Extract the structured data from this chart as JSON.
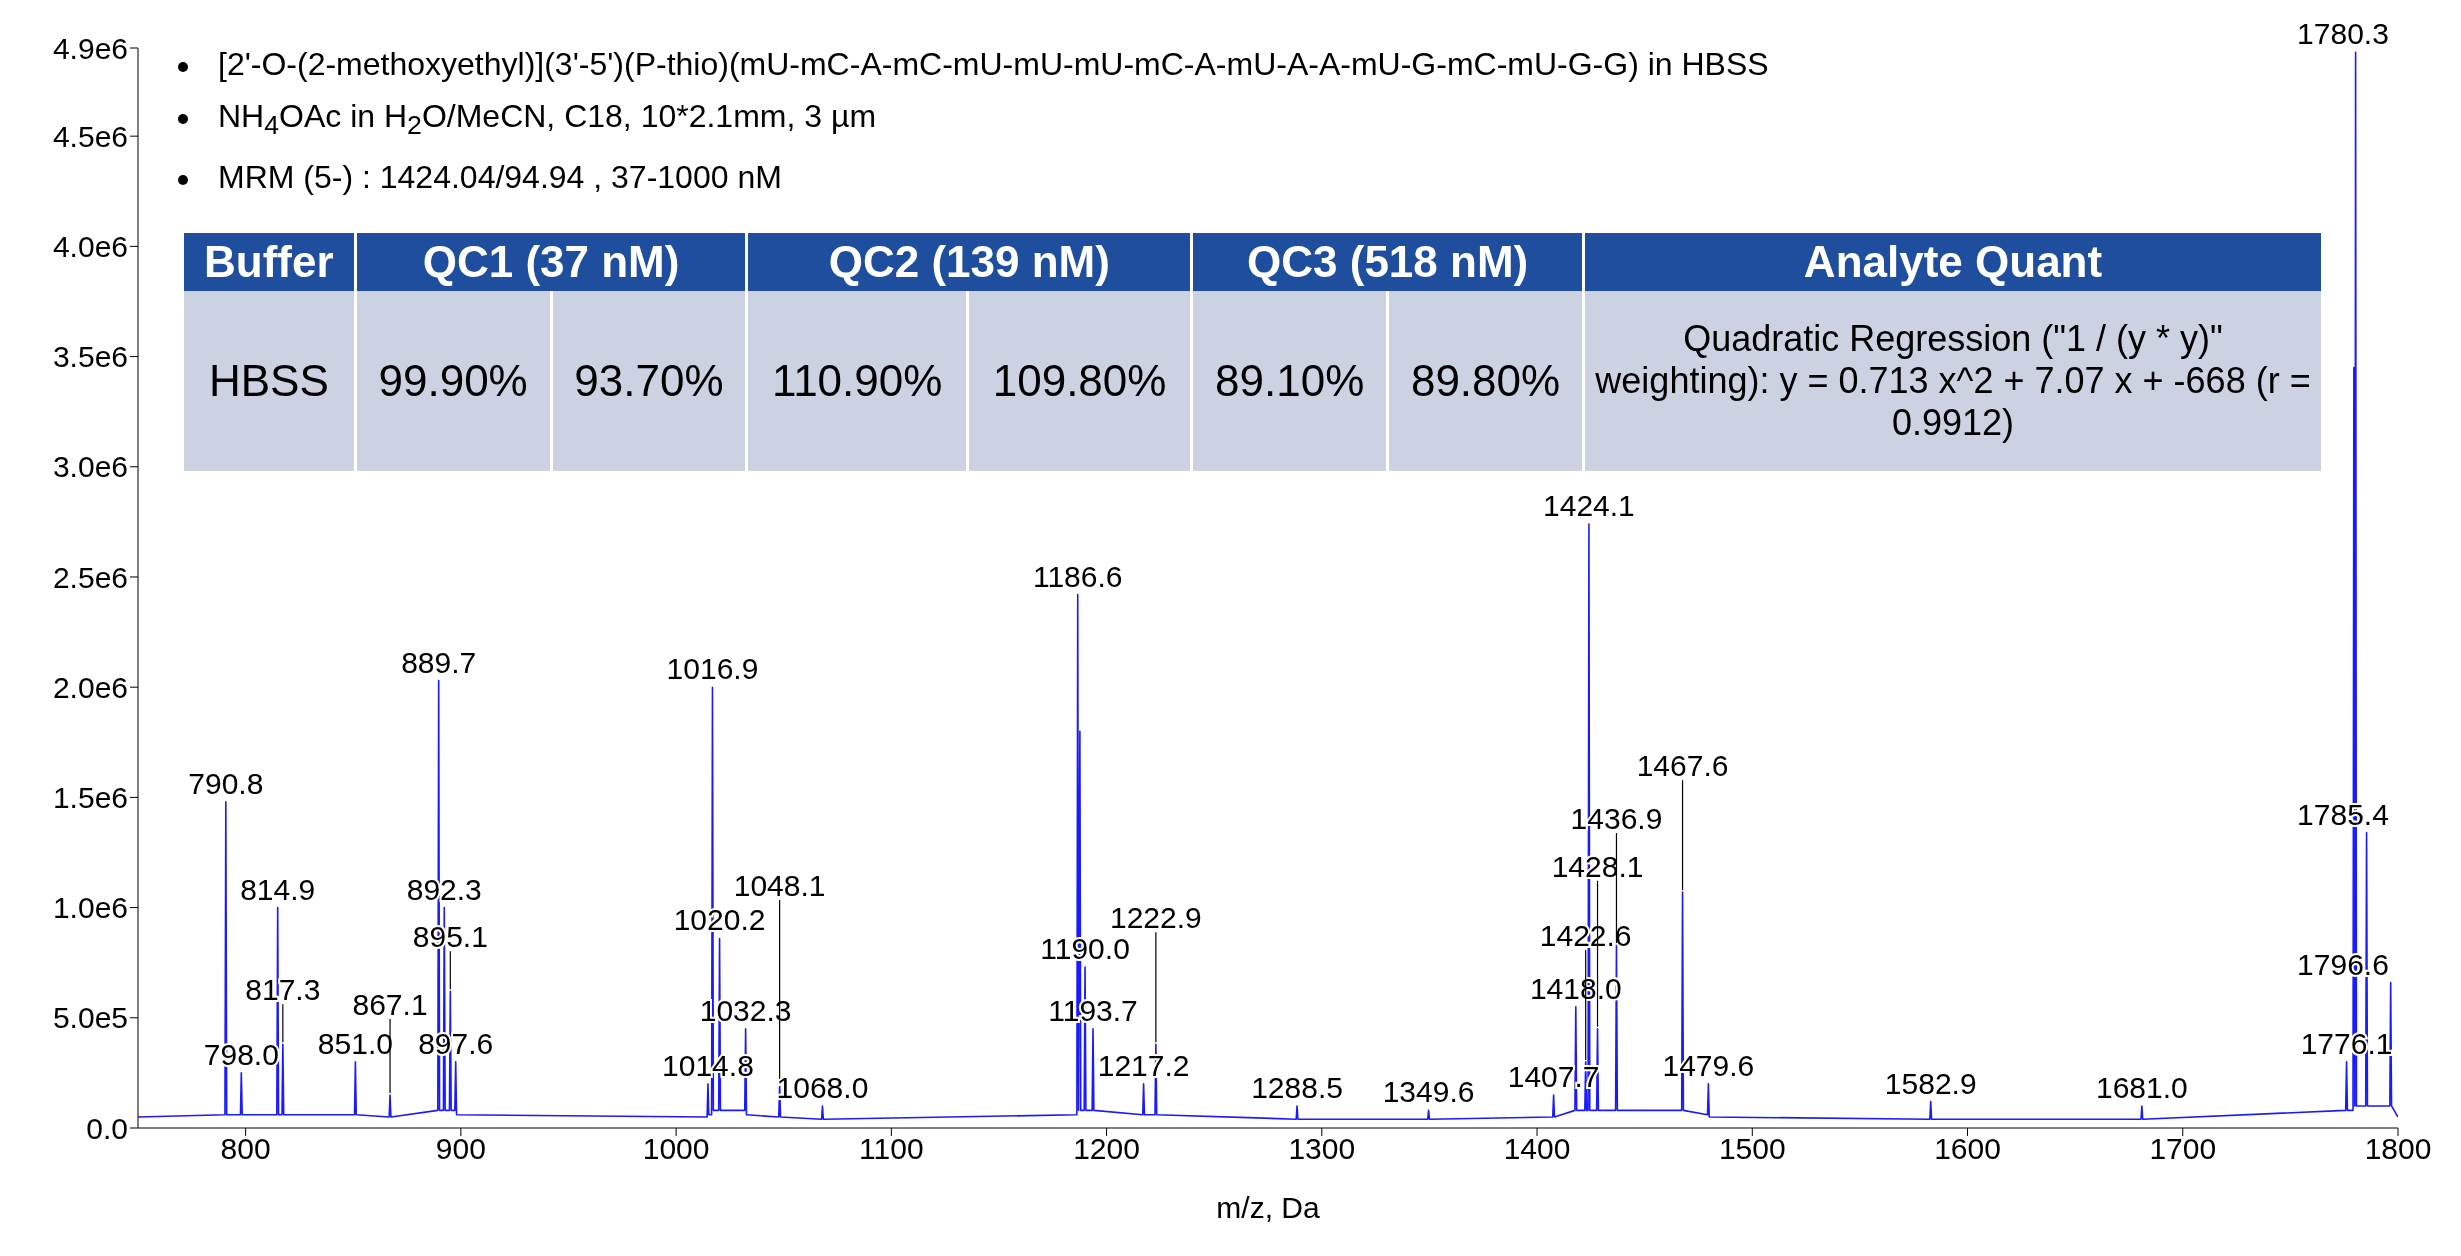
{
  "chart_data": {
    "type": "line",
    "xlabel": "m/z, Da",
    "xlim": [
      750,
      1800
    ],
    "xticks": [
      800,
      900,
      1000,
      1100,
      1200,
      1300,
      1400,
      1500,
      1600,
      1700,
      1800
    ],
    "ylim": [
      0,
      4900000
    ],
    "yticks": [
      {
        "value": 0,
        "label": "0.0"
      },
      {
        "value": 500000,
        "label": "5.0e5"
      },
      {
        "value": 1000000,
        "label": "1.0e6"
      },
      {
        "value": 1500000,
        "label": "1.5e6"
      },
      {
        "value": 2000000,
        "label": "2.0e6"
      },
      {
        "value": 2500000,
        "label": "2.5e6"
      },
      {
        "value": 3000000,
        "label": "3.0e6"
      },
      {
        "value": 3500000,
        "label": "3.5e6"
      },
      {
        "value": 4000000,
        "label": "4.0e6"
      },
      {
        "value": 4500000,
        "label": "4.5e6"
      },
      {
        "value": 4900000,
        "label": "4.9e6"
      }
    ],
    "grid": false,
    "legend": false,
    "marker": "none",
    "line_style": "solid",
    "series": [
      {
        "color": "#1a1aff",
        "x": [
          750,
          790.4,
          790.8,
          791.2,
          797.6,
          798.0,
          798.4,
          814.5,
          814.9,
          815.3,
          816.9,
          817.3,
          817.7,
          850.6,
          851.0,
          851.4,
          866.7,
          867.1,
          867.5,
          889.3,
          889.7,
          890.1,
          891.9,
          892.3,
          892.7,
          894.7,
          895.1,
          895.5,
          897.2,
          897.6,
          898.0,
          1014.4,
          1014.8,
          1015.2,
          1016.5,
          1016.9,
          1017.3,
          1019.8,
          1020.2,
          1020.6,
          1031.9,
          1032.3,
          1032.7,
          1047.7,
          1048.1,
          1048.5,
          1067.6,
          1068.0,
          1068.4,
          1186.2,
          1186.6,
          1187.0,
          1187.6,
          1188.0,
          1189.6,
          1190.0,
          1190.4,
          1193.3,
          1193.7,
          1194.1,
          1216.8,
          1217.2,
          1217.6,
          1222.5,
          1222.9,
          1223.3,
          1288.1,
          1288.5,
          1288.9,
          1349.2,
          1349.6,
          1350.0,
          1407.3,
          1407.7,
          1408.1,
          1417.6,
          1418.0,
          1418.4,
          1422.2,
          1422.6,
          1423.0,
          1423.7,
          1424.1,
          1424.5,
          1427.7,
          1428.1,
          1428.5,
          1436.5,
          1436.9,
          1437.3,
          1467.2,
          1467.6,
          1468.0,
          1479.2,
          1479.6,
          1480.0,
          1582.5,
          1582.9,
          1583.3,
          1680.6,
          1681.0,
          1681.4,
          1775.7,
          1776.1,
          1776.5,
          1779.1,
          1779.5,
          1779.9,
          1780.3,
          1780.7,
          1785.0,
          1785.4,
          1785.8,
          1796.2,
          1796.6,
          1797.0,
          1800
        ],
        "values": [
          50000,
          60000,
          1480000,
          60000,
          60000,
          250000,
          60000,
          60000,
          1000000,
          60000,
          60000,
          380000,
          60000,
          60000,
          300000,
          60000,
          50000,
          150000,
          50000,
          80000,
          2030000,
          80000,
          80000,
          1000000,
          80000,
          80000,
          620000,
          80000,
          80000,
          300000,
          60000,
          50000,
          200000,
          60000,
          60000,
          2000000,
          80000,
          80000,
          860000,
          80000,
          80000,
          450000,
          60000,
          50000,
          200000,
          50000,
          40000,
          100000,
          40000,
          60000,
          2420000,
          80000,
          1800000,
          80000,
          80000,
          730000,
          80000,
          80000,
          450000,
          80000,
          60000,
          200000,
          60000,
          60000,
          380000,
          60000,
          40000,
          100000,
          40000,
          40000,
          80000,
          40000,
          50000,
          150000,
          50000,
          80000,
          550000,
          80000,
          80000,
          300000,
          80000,
          80000,
          2740000,
          80000,
          80000,
          450000,
          80000,
          80000,
          830000,
          80000,
          80000,
          1070000,
          80000,
          60000,
          200000,
          50000,
          40000,
          120000,
          40000,
          40000,
          100000,
          40000,
          80000,
          300000,
          80000,
          80000,
          3450000,
          100000,
          4880000,
          100000,
          100000,
          1340000,
          100000,
          100000,
          660000,
          100000,
          50000
        ]
      }
    ],
    "annotations": [
      "[2'-O-(2-methoxyethyl)](3'-5')(P-thio)(mU-mC-A-mC-mU-mU-mU-mC-A-mU-A-A-mU-G-mC-mU-G-G) in HBSS",
      "NH$_{4}$OAc in H$_{2}$O/MeCN, C18, 10*2.1mm, 3 µm",
      "MRM (5-) : 1424.04/94.94 , 37-1000 nM",
      "Buffer",
      "QC1 (37 nM)",
      "QC2 (139 nM)",
      "QC3 (518 nM)",
      "Analyte Quant",
      "HBSS",
      "99.90%",
      "93.70%",
      "110.90%",
      "109.80%",
      "89.10%",
      "89.80%",
      "Quadratic Regression (\"1 / (y * y)\" weighting): y = 0.713 x^2 + 7.07 x + -668 (r = 0.9912)",
      {
        "text": "790.8",
        "x": 790.8,
        "y": 1480000
      },
      {
        "text": "798.0",
        "x": 798.0,
        "y": 250000
      },
      {
        "text": "814.9",
        "x": 814.9,
        "y": 1000000
      },
      {
        "text": "817.3",
        "x": 817.3,
        "y": 380000
      },
      {
        "text": "851.0",
        "x": 851.0,
        "y": 300000
      },
      {
        "text": "867.1",
        "x": 867.1,
        "y": 150000
      },
      {
        "text": "889.7",
        "x": 889.7,
        "y": 2030000
      },
      {
        "text": "892.3",
        "x": 892.3,
        "y": 1000000
      },
      {
        "text": "895.1",
        "x": 895.1,
        "y": 620000
      },
      {
        "text": "897.6",
        "x": 897.6,
        "y": 300000
      },
      {
        "text": "1014.8",
        "x": 1014.8,
        "y": 200000
      },
      {
        "text": "1016.9",
        "x": 1016.9,
        "y": 2000000
      },
      {
        "text": "1020.2",
        "x": 1020.2,
        "y": 860000
      },
      {
        "text": "1032.3",
        "x": 1032.3,
        "y": 450000
      },
      {
        "text": "1048.1",
        "x": 1048.1,
        "y": 200000
      },
      {
        "text": "1068.0",
        "x": 1068.0,
        "y": 100000
      },
      {
        "text": "1186.6",
        "x": 1186.6,
        "y": 2420000
      },
      {
        "text": "1190.0",
        "x": 1190.0,
        "y": 730000
      },
      {
        "text": "1193.7",
        "x": 1193.7,
        "y": 450000
      },
      {
        "text": "1217.2",
        "x": 1217.2,
        "y": 200000
      },
      {
        "text": "1222.9",
        "x": 1222.9,
        "y": 380000
      },
      {
        "text": "1288.5",
        "x": 1288.5,
        "y": 100000
      },
      {
        "text": "1349.6",
        "x": 1349.6,
        "y": 80000
      },
      {
        "text": "1407.7",
        "x": 1407.7,
        "y": 150000
      },
      {
        "text": "1418.0",
        "x": 1418.0,
        "y": 550000
      },
      {
        "text": "1422.6",
        "x": 1422.6,
        "y": 300000
      },
      {
        "text": "1424.1",
        "x": 1424.1,
        "y": 2740000
      },
      {
        "text": "1428.1",
        "x": 1428.1,
        "y": 450000
      },
      {
        "text": "1436.9",
        "x": 1436.9,
        "y": 830000
      },
      {
        "text": "1467.6",
        "x": 1467.6,
        "y": 1070000
      },
      {
        "text": "1479.6",
        "x": 1479.6,
        "y": 200000
      },
      {
        "text": "1582.9",
        "x": 1582.9,
        "y": 120000
      },
      {
        "text": "1681.0",
        "x": 1681.0,
        "y": 100000
      },
      {
        "text": "1776.1",
        "x": 1776.1,
        "y": 300000
      },
      {
        "text": "1780.3",
        "x": 1780.3,
        "y": 4880000
      },
      {
        "text": "1785.4",
        "x": 1785.4,
        "y": 1340000
      },
      {
        "text": "1796.6",
        "x": 1796.6,
        "y": 660000
      }
    ]
  }
}
